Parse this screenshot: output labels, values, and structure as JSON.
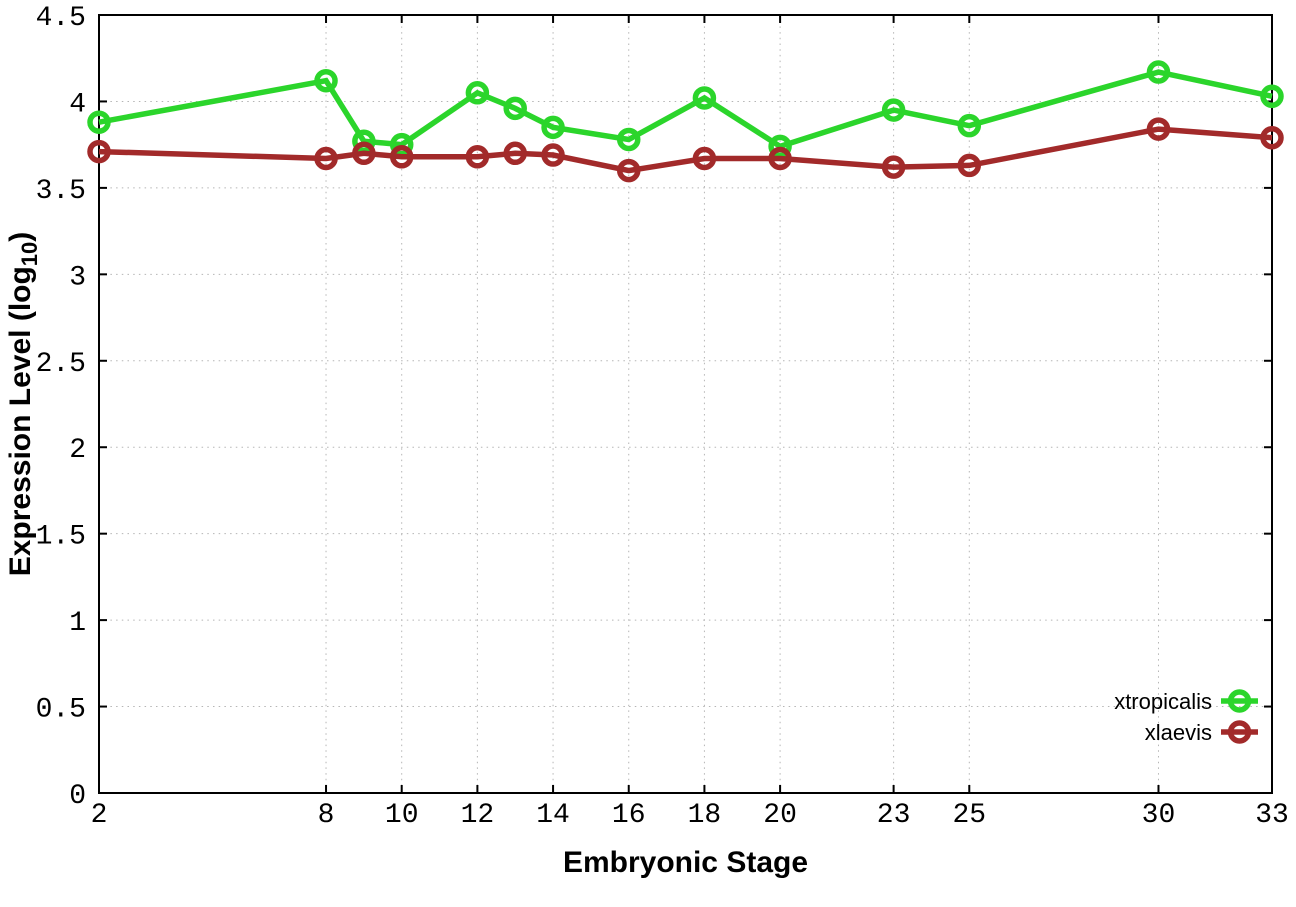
{
  "chart_data": {
    "type": "line",
    "title": "",
    "xlabel": "Embryonic Stage",
    "ylabel": {
      "prefix": "Expression Level (log",
      "sub": "10",
      "suffix": ")"
    },
    "x": [
      2,
      8,
      9,
      10,
      12,
      13,
      14,
      16,
      18,
      20,
      23,
      25,
      30,
      33
    ],
    "series": [
      {
        "name": "xtropicalis",
        "color": "#2bd52b",
        "marker": "open-circle",
        "values": [
          3.88,
          4.12,
          3.77,
          3.75,
          4.05,
          3.96,
          3.85,
          3.78,
          4.02,
          3.74,
          3.95,
          3.86,
          4.17,
          4.03
        ]
      },
      {
        "name": "xlaevis",
        "color": "#a22a2a",
        "marker": "open-circle",
        "values": [
          3.71,
          3.67,
          3.7,
          3.68,
          3.68,
          3.7,
          3.69,
          3.6,
          3.67,
          3.67,
          3.62,
          3.63,
          3.84,
          3.79
        ]
      }
    ],
    "xlim": [
      2,
      33
    ],
    "ylim": [
      0,
      4.5
    ],
    "x_ticks": [
      2,
      8,
      10,
      12,
      14,
      16,
      18,
      20,
      23,
      25,
      30,
      33
    ],
    "y_ticks": [
      0,
      0.5,
      1,
      1.5,
      2,
      2.5,
      3,
      3.5,
      4,
      4.5
    ],
    "grid": true,
    "legend_position": "inside-bottom-right"
  },
  "colors": {
    "background": "#ffffff",
    "axis": "#000000",
    "grid": "#b5b5b5",
    "text": "#000000"
  }
}
